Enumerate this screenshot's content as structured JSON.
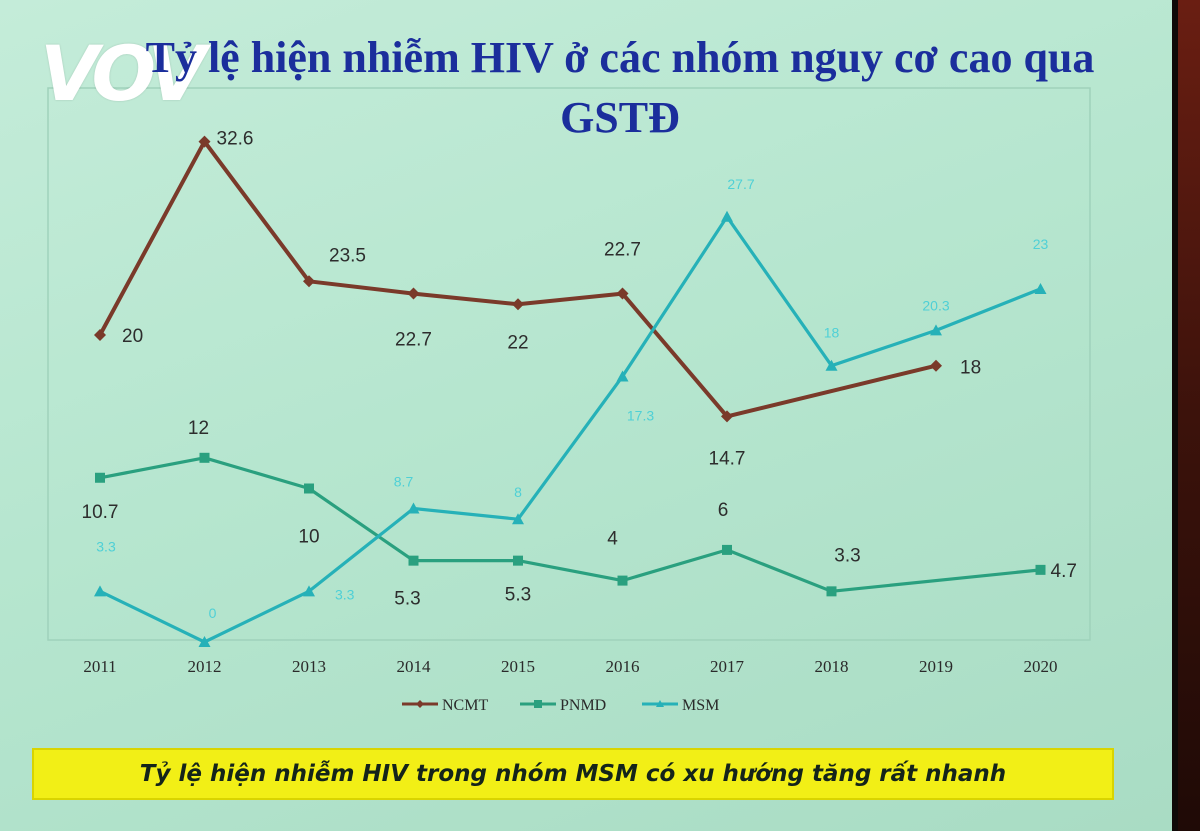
{
  "logo": {
    "text": "VOV"
  },
  "title": "Tỷ lệ hiện nhiễm HIV ở các nhóm nguy cơ cao qua GSTĐ",
  "banner": {
    "text": "Tỷ lệ hiện nhiễm HIV trong nhóm MSM có xu hướng tăng rất nhanh"
  },
  "colors": {
    "ncmt": "#7a3a2a",
    "pnmd": "#2aa07f",
    "msm": "#26b1b8",
    "background": "#bde8d3",
    "banner": "#f2ef16",
    "title": "#1b2e9c"
  },
  "chart_data": {
    "type": "line",
    "categories": [
      "2011",
      "2012",
      "2013",
      "2014",
      "2015",
      "2016",
      "2017",
      "2018",
      "2019",
      "2020"
    ],
    "ylim": [
      0,
      35
    ],
    "grid": false,
    "legend_position": "bottom",
    "series": [
      {
        "name": "NCMT",
        "marker": "diamond",
        "values": [
          20,
          32.6,
          23.5,
          22.7,
          22,
          22.7,
          14.7,
          null,
          18,
          null
        ],
        "labels": [
          "20",
          "32.6",
          "23.5",
          "22.7",
          "22",
          "22.7",
          "14.7",
          null,
          "18",
          null
        ]
      },
      {
        "name": "PNMD",
        "marker": "square",
        "values": [
          10.7,
          12,
          10,
          5.3,
          5.3,
          4,
          6,
          3.3,
          null,
          4.7
        ],
        "labels": [
          "10.7",
          "12",
          "10",
          "5.3",
          "5.3",
          "4",
          "6",
          "3.3",
          null,
          "4.7"
        ]
      },
      {
        "name": "MSM",
        "marker": "triangle",
        "values": [
          3.3,
          0,
          3.3,
          8.7,
          8,
          17.3,
          27.7,
          18,
          20.3,
          23
        ],
        "labels": [
          "3.3",
          "0",
          "3.3",
          "8.7",
          "8",
          "17.3",
          "27.7",
          "18",
          "20.3",
          "23"
        ]
      }
    ]
  }
}
